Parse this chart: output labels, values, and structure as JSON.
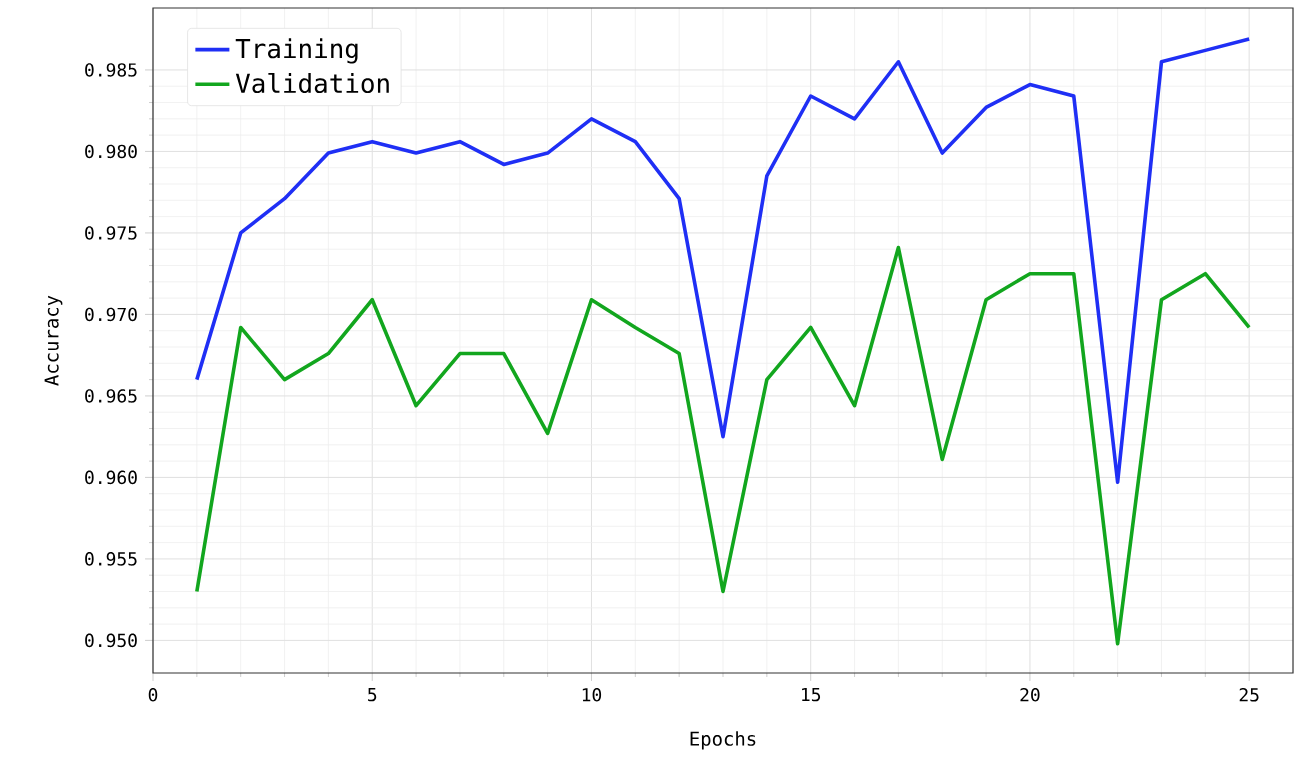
{
  "chart_data": {
    "type": "line",
    "xlabel": "Epochs",
    "ylabel": "Accuracy",
    "x": [
      1,
      2,
      3,
      4,
      5,
      6,
      7,
      8,
      9,
      10,
      11,
      12,
      13,
      14,
      15,
      16,
      17,
      18,
      19,
      20,
      21,
      22,
      23,
      24,
      25
    ],
    "series": [
      {
        "name": "Training",
        "color": "#1f2ff5",
        "values": [
          0.966,
          0.975,
          0.9771,
          0.9799,
          0.9806,
          0.9799,
          0.9806,
          0.9792,
          0.9799,
          0.982,
          0.9806,
          0.9771,
          0.9625,
          0.9785,
          0.9834,
          0.982,
          0.9855,
          0.9799,
          0.9827,
          0.9841,
          0.9834,
          0.9597,
          0.9855,
          0.9862,
          0.9869
        ]
      },
      {
        "name": "Validation",
        "color": "#12a61e",
        "values": [
          0.953,
          0.9692,
          0.966,
          0.9676,
          0.9709,
          0.9644,
          0.9676,
          0.9676,
          0.9627,
          0.9709,
          0.9692,
          0.9676,
          0.953,
          0.966,
          0.9692,
          0.9644,
          0.9741,
          0.9611,
          0.9709,
          0.9725,
          0.9725,
          0.9498,
          0.9709,
          0.9725,
          0.9692
        ]
      }
    ],
    "xlim": [
      0,
      26
    ],
    "ylim": [
      0.948,
      0.9888
    ],
    "xticks": [
      0,
      5,
      10,
      15,
      20,
      25
    ],
    "yticks": [
      {
        "value": 0.95,
        "label": "0.950"
      },
      {
        "value": 0.955,
        "label": "0.955"
      },
      {
        "value": 0.96,
        "label": "0.960"
      },
      {
        "value": 0.965,
        "label": "0.965"
      },
      {
        "value": 0.97,
        "label": "0.970"
      },
      {
        "value": 0.975,
        "label": "0.975"
      },
      {
        "value": 0.98,
        "label": "0.980"
      },
      {
        "value": 0.985,
        "label": "0.985"
      }
    ],
    "grid": true,
    "legend": "top left",
    "marker": "none",
    "line_style": "solid"
  }
}
